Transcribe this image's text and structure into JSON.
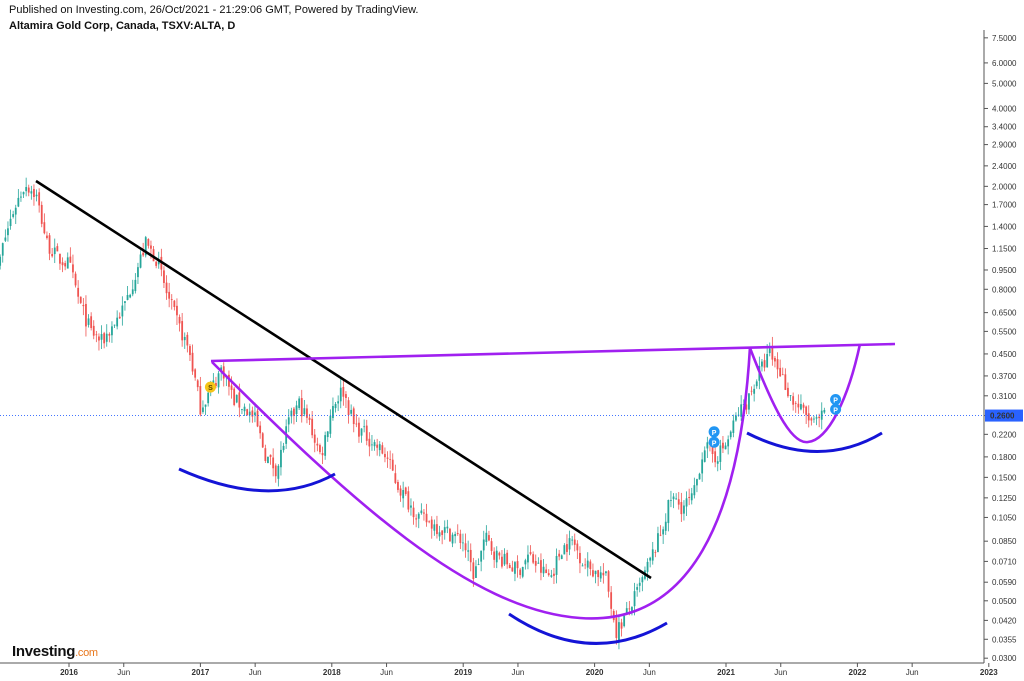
{
  "header": {
    "published": "Published on Investing.com, 26/Oct/2021 - 21:29:06 GMT, Powered by TradingView.",
    "symbol": "Altamira Gold Corp, Canada, TSXV:ALTA, D"
  },
  "brand": {
    "name": "Investing",
    "suffix": ".com"
  },
  "chart_data": {
    "type": "candlestick",
    "title": "Altamira Gold Corp, Canada, TSXV:ALTA, D",
    "y_scale": "log",
    "ylim": [
      0.029,
      7.9
    ],
    "y_ticks": [
      "7.5000",
      "6.0000",
      "5.0000",
      "4.0000",
      "3.4000",
      "2.9000",
      "2.4000",
      "2.0000",
      "1.7000",
      "1.4000",
      "1.1500",
      "0.9500",
      "0.8000",
      "0.6500",
      "0.5500",
      "0.4500",
      "0.3700",
      "0.3100",
      "0.2600",
      "0.2200",
      "0.1800",
      "0.1500",
      "0.1250",
      "0.1050",
      "0.0850",
      "0.0710",
      "0.0590",
      "0.0500",
      "0.0420",
      "0.0355",
      "0.0300"
    ],
    "x_ticks": [
      "2016",
      "Jun",
      "2017",
      "Jun",
      "2018",
      "Jun",
      "2019",
      "Jun",
      "2020",
      "Jun",
      "2021",
      "Jun",
      "2022",
      "Jun",
      "2023"
    ],
    "x_tick_dates": [
      "2016-01",
      "2016-06",
      "2017-01",
      "2017-06",
      "2018-01",
      "2018-06",
      "2019-01",
      "2019-06",
      "2020-01",
      "2020-06",
      "2021-01",
      "2021-06",
      "2022-01",
      "2022-06",
      "2023-01"
    ],
    "last_price": "0.2600",
    "colors": {
      "up": "#26a69a",
      "down": "#ef5350",
      "price_line": "#2962ff",
      "price_label_bg": "#2962ff"
    },
    "price_path": [
      [
        "2015-06",
        0.75
      ],
      [
        "2015-07",
        1.2
      ],
      [
        "2015-08",
        1.65
      ],
      [
        "2015-09",
        2.05
      ],
      [
        "2015-10",
        1.85
      ],
      [
        "2015-11",
        1.2
      ],
      [
        "2015-12",
        1.05
      ],
      [
        "2016-01",
        1.0
      ],
      [
        "2016-02",
        0.7
      ],
      [
        "2016-03",
        0.55
      ],
      [
        "2016-04",
        0.5
      ],
      [
        "2016-05",
        0.58
      ],
      [
        "2016-06",
        0.68
      ],
      [
        "2016-07",
        0.9
      ],
      [
        "2016-08",
        1.2
      ],
      [
        "2016-09",
        1.05
      ],
      [
        "2016-10",
        0.75
      ],
      [
        "2016-11",
        0.58
      ],
      [
        "2016-12",
        0.46
      ],
      [
        "2017-01",
        0.28
      ],
      [
        "2017-02",
        0.33
      ],
      [
        "2017-03",
        0.4
      ],
      [
        "2017-04",
        0.3
      ],
      [
        "2017-05",
        0.28
      ],
      [
        "2017-06",
        0.25
      ],
      [
        "2017-07",
        0.18
      ],
      [
        "2017-08",
        0.16
      ],
      [
        "2017-09",
        0.24
      ],
      [
        "2017-10",
        0.29
      ],
      [
        "2017-11",
        0.24
      ],
      [
        "2017-12",
        0.18
      ],
      [
        "2018-01",
        0.28
      ],
      [
        "2018-02",
        0.33
      ],
      [
        "2018-03",
        0.24
      ],
      [
        "2018-04",
        0.22
      ],
      [
        "2018-05",
        0.2
      ],
      [
        "2018-06",
        0.18
      ],
      [
        "2018-07",
        0.14
      ],
      [
        "2018-08",
        0.12
      ],
      [
        "2018-09",
        0.105
      ],
      [
        "2018-10",
        0.1
      ],
      [
        "2018-11",
        0.095
      ],
      [
        "2018-12",
        0.09
      ],
      [
        "2019-01",
        0.085
      ],
      [
        "2019-02",
        0.062
      ],
      [
        "2019-03",
        0.088
      ],
      [
        "2019-04",
        0.075
      ],
      [
        "2019-05",
        0.07
      ],
      [
        "2019-06",
        0.065
      ],
      [
        "2019-07",
        0.075
      ],
      [
        "2019-08",
        0.066
      ],
      [
        "2019-09",
        0.062
      ],
      [
        "2019-10",
        0.08
      ],
      [
        "2019-11",
        0.085
      ],
      [
        "2019-12",
        0.07
      ],
      [
        "2020-01",
        0.065
      ],
      [
        "2020-02",
        0.062
      ],
      [
        "2020-03",
        0.038
      ],
      [
        "2020-04",
        0.045
      ],
      [
        "2020-05",
        0.055
      ],
      [
        "2020-06",
        0.07
      ],
      [
        "2020-07",
        0.09
      ],
      [
        "2020-08",
        0.125
      ],
      [
        "2020-09",
        0.115
      ],
      [
        "2020-10",
        0.125
      ],
      [
        "2020-11",
        0.2
      ],
      [
        "2020-12",
        0.18
      ],
      [
        "2021-01",
        0.2
      ],
      [
        "2021-02",
        0.26
      ],
      [
        "2021-03",
        0.3
      ],
      [
        "2021-04",
        0.38
      ],
      [
        "2021-05",
        0.45
      ],
      [
        "2021-06",
        0.38
      ],
      [
        "2021-07",
        0.3
      ],
      [
        "2021-08",
        0.27
      ],
      [
        "2021-09",
        0.24
      ],
      [
        "2021-10",
        0.26
      ]
    ]
  },
  "annotations": {
    "colors": {
      "downtrend": "#000000",
      "resistance": "#a020f0",
      "cup": "#a020f0",
      "arcs": "#1414d6"
    },
    "markers": [
      {
        "label": "S",
        "date": "2017-01",
        "price": 0.335,
        "color": "#f5c518"
      },
      {
        "label": "P",
        "date": "2020-11",
        "price": 0.225,
        "color": "#2196f3"
      },
      {
        "label": "P",
        "date": "2020-11",
        "price": 0.205,
        "color": "#2196f3"
      },
      {
        "label": "P",
        "date": "2021-09",
        "price": 0.3,
        "color": "#2196f3"
      },
      {
        "label": "P",
        "date": "2021-09",
        "price": 0.275,
        "color": "#2196f3"
      }
    ]
  }
}
